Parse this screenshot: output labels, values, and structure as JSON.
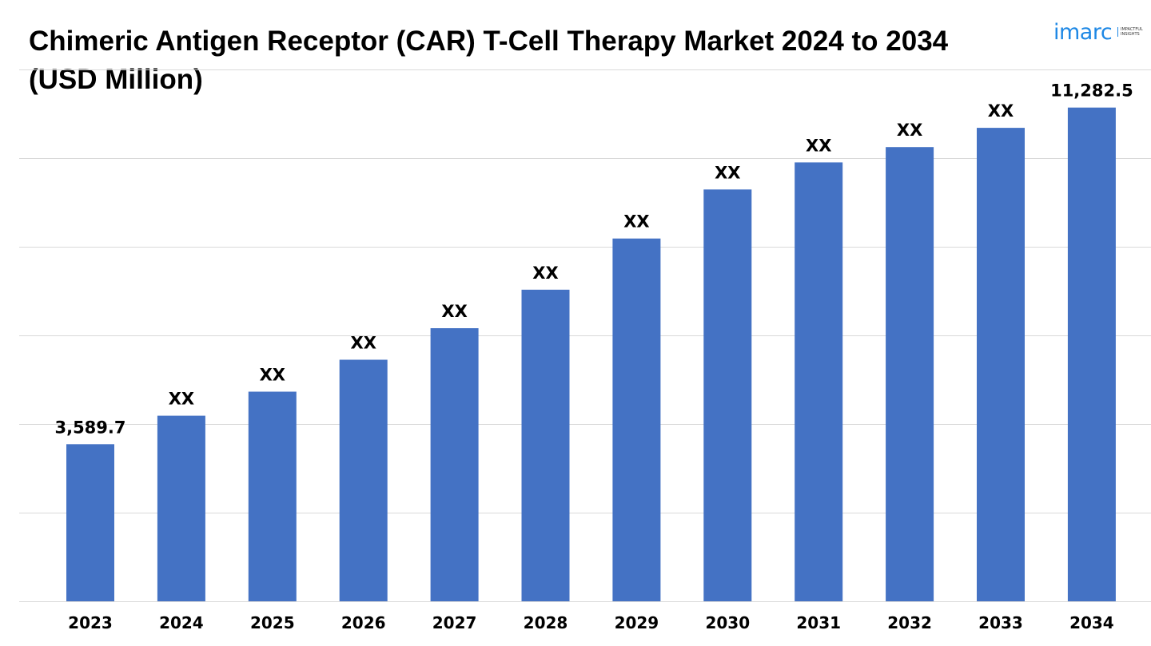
{
  "title_line1": "Chimeric Antigen Receptor (CAR) T-Cell Therapy Market 2024 to 2034",
  "title_line2": "(USD Million)",
  "logo": {
    "text": "imarc",
    "tagline": "IMPACTFUL INSIGHTS",
    "color": "#1e88e5"
  },
  "colors": {
    "bar": "#4472c4",
    "grid": "#d9d9d9",
    "text": "#000000"
  },
  "chart_data": {
    "type": "bar",
    "title": "Chimeric Antigen Receptor (CAR) T-Cell Therapy Market 2024 to 2034 (USD Million)",
    "xlabel": "",
    "ylabel": "",
    "categories": [
      "2023",
      "2024",
      "2025",
      "2026",
      "2027",
      "2028",
      "2029",
      "2030",
      "2031",
      "2032",
      "2033",
      "2034"
    ],
    "values": [
      3589.7,
      4240,
      4790,
      5520,
      6240,
      7120,
      8290,
      9410,
      10030,
      10380,
      10820,
      11282.5
    ],
    "data_labels": [
      "3,589.7",
      "XX",
      "XX",
      "XX",
      "XX",
      "XX",
      "XX",
      "XX",
      "XX",
      "XX",
      "XX",
      "11,282.5"
    ],
    "ylim": [
      0,
      13500
    ],
    "grid": true,
    "legend": "none"
  }
}
